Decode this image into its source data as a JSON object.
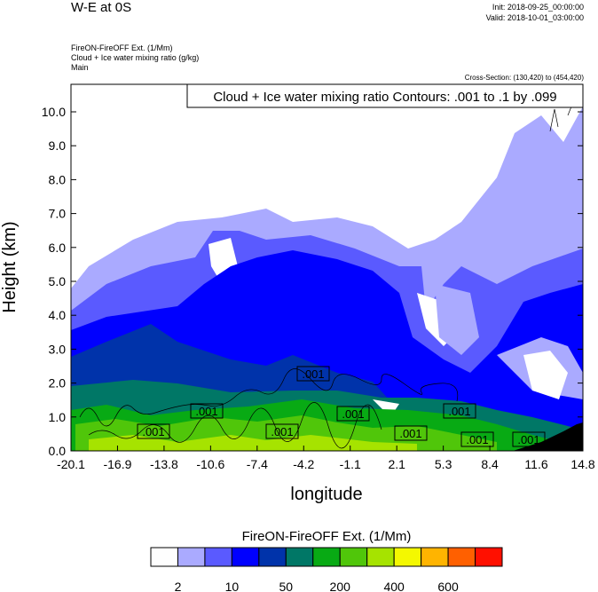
{
  "header": {
    "title": "W-E at 0S",
    "init": "Init: 2018-09-25_00:00:00",
    "valid": "Valid: 2018-10-01_03:00:00",
    "field1": "FireON-FireOFF Ext.   (1/Mm)",
    "field2": "Cloud + Ice water mixing ratio   (g/kg)",
    "field3": "Main",
    "cross_section": "Cross-Section: (130,420) to (454,420)"
  },
  "chart_data": {
    "type": "heatmap",
    "title": "W-E at 0S",
    "xlabel": "longitude",
    "ylabel": "Height (km)",
    "xlim": [
      -20.1,
      14.8
    ],
    "ylim": [
      0,
      10.8
    ],
    "xticks": [
      "-20.1",
      "-16.9",
      "-13.8",
      "-10.6",
      "-7.4",
      "-4.2",
      "-1.1",
      "2.1",
      "5.3",
      "8.4",
      "11.6",
      "14.8"
    ],
    "yticks": [
      "0.0",
      "1.0",
      "2.0",
      "3.0",
      "4.0",
      "5.0",
      "6.0",
      "7.0",
      "8.0",
      "9.0",
      "10.0"
    ],
    "contour_info": "Cloud + Ice water mixing ratio Contours: .001 to .1 by .099",
    "contour_labels": [
      ".001",
      ".001",
      ".001",
      ".001",
      ".001",
      ".001",
      ".001",
      ".001",
      ".001"
    ],
    "colorbar": {
      "title": "FireON-FireOFF Ext.  (1/Mm)",
      "colors": [
        "#fefefe",
        "#aaaaff",
        "#5a5aff",
        "#0000ff",
        "#0033aa",
        "#007766",
        "#08aa14",
        "#50c60a",
        "#a6e300",
        "#f4f800",
        "#ffb400",
        "#ff6000",
        "#ff1000"
      ],
      "labels": [
        "2",
        "10",
        "50",
        "200",
        "400",
        "600"
      ]
    }
  }
}
